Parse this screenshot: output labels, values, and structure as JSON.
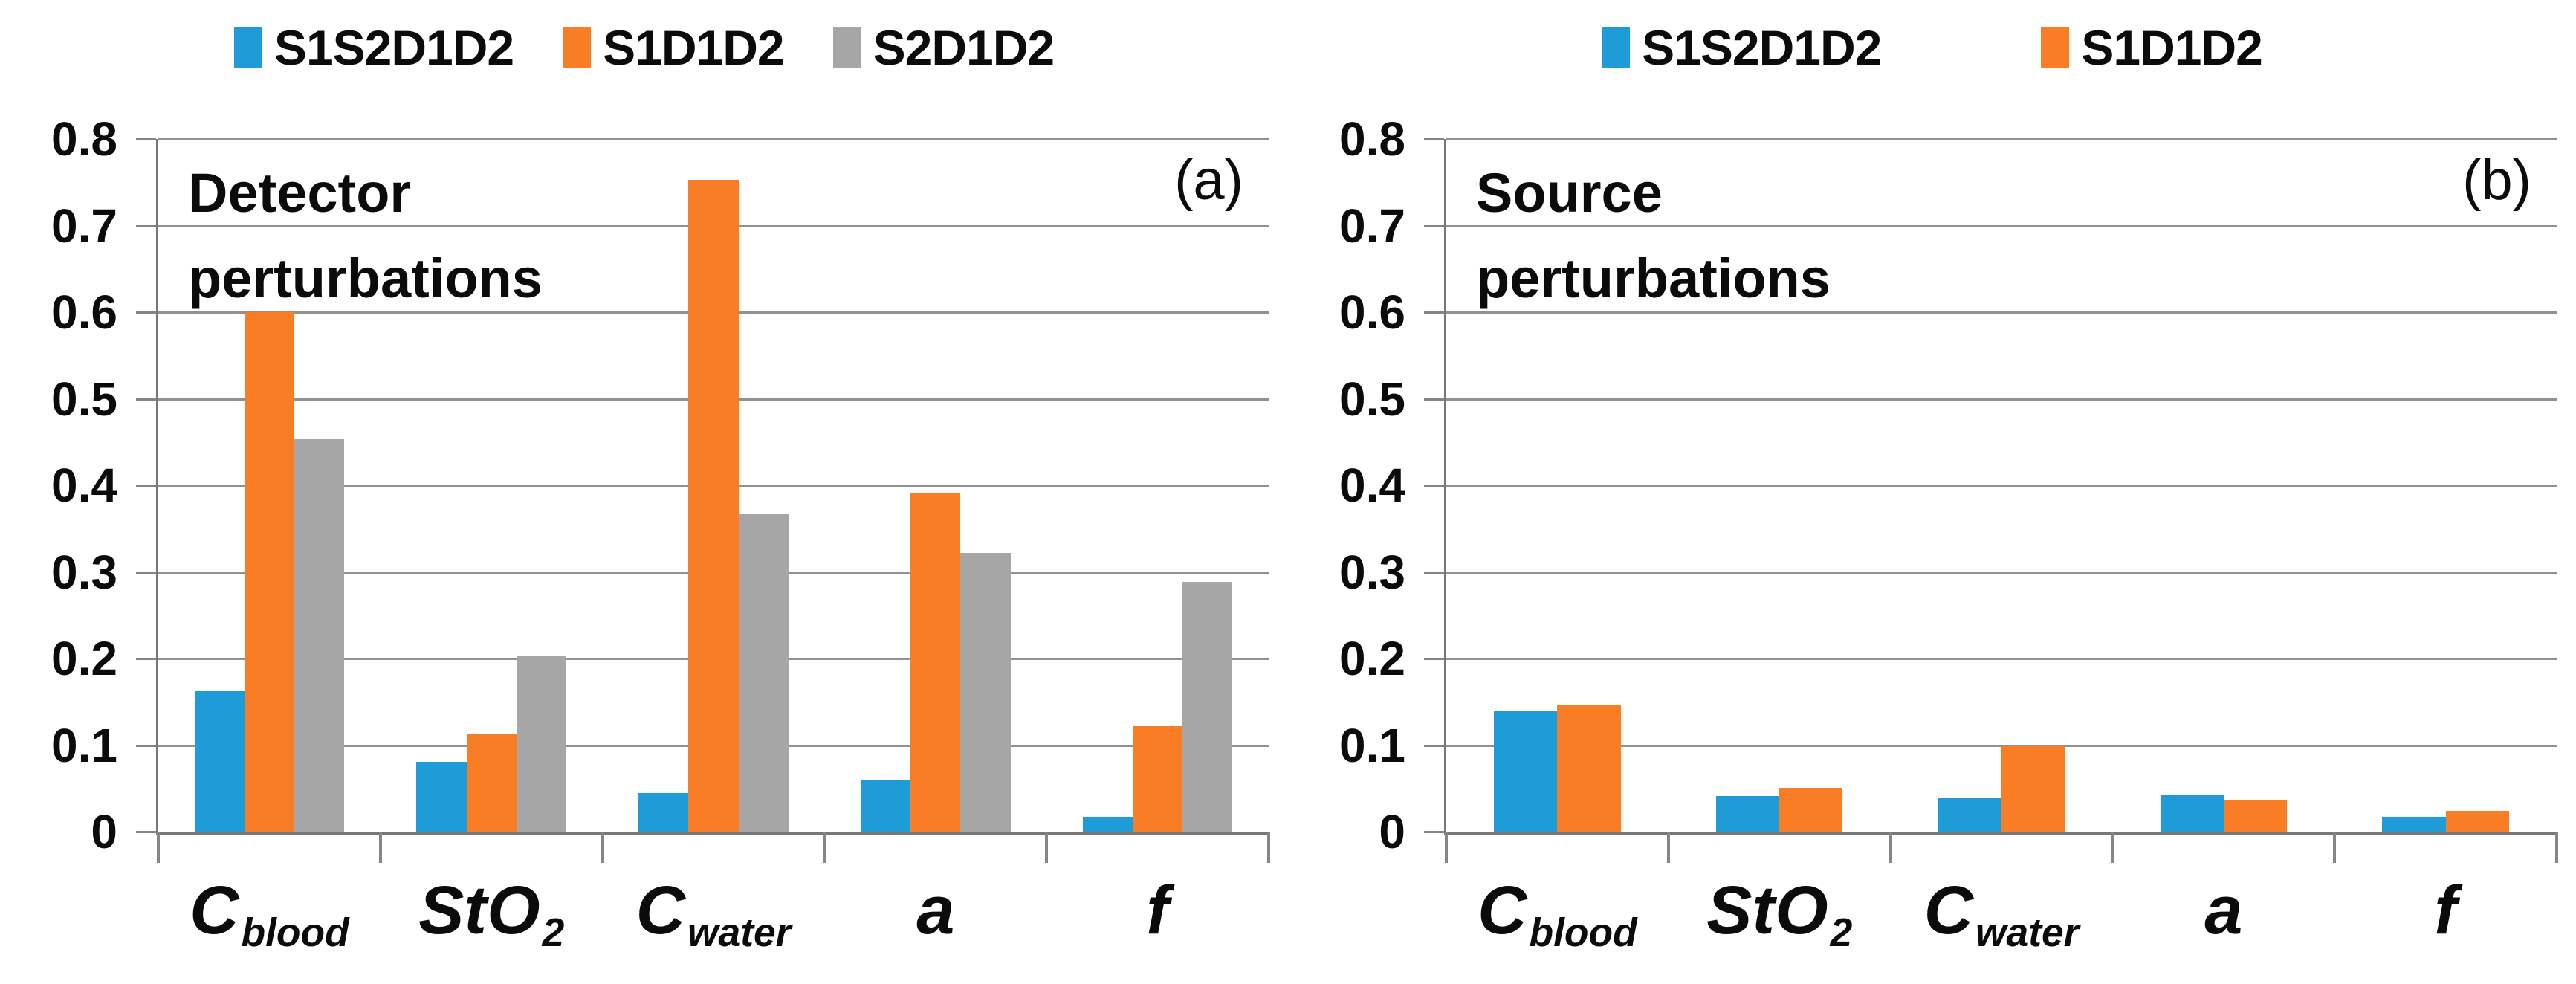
{
  "figure": {
    "background": "#ffffff",
    "grid_color": "#919191",
    "axis_color": "#777777",
    "text_color": "#0b0b0b"
  },
  "chart_data": [
    {
      "type": "bar",
      "panel_letter": "(a)",
      "title": "Detector perturbations",
      "ylim": [
        0,
        0.8
      ],
      "ytick_labels": [
        "0.8",
        "0.7",
        "0.6",
        "0.5",
        "0.4",
        "0.3",
        "0.2",
        "0.1",
        "0"
      ],
      "grid": true,
      "legend_position": "top",
      "categories": [
        {
          "main": "C",
          "sub": "blood"
        },
        {
          "main": "StO",
          "sub": "2"
        },
        {
          "main": "C",
          "sub": "water"
        },
        {
          "main": "a",
          "sub": ""
        },
        {
          "main": "f",
          "sub": ""
        }
      ],
      "series": [
        {
          "name": "S1S2D1D2",
          "color": "#1E9CD8",
          "values": [
            0.162,
            0.081,
            0.045,
            0.06,
            0.017
          ]
        },
        {
          "name": "S1D1D2",
          "color": "#F87D25",
          "values": [
            0.6,
            0.113,
            0.753,
            0.391,
            0.122
          ]
        },
        {
          "name": "S2D1D2",
          "color": "#A6A6A6",
          "values": [
            0.453,
            0.203,
            0.367,
            0.322,
            0.288
          ]
        }
      ]
    },
    {
      "type": "bar",
      "panel_letter": "(b)",
      "title": "Source perturbations",
      "ylim": [
        0,
        0.8
      ],
      "ytick_labels": [
        "0.8",
        "0.7",
        "0.6",
        "0.5",
        "0.4",
        "0.3",
        "0.2",
        "0.1",
        "0"
      ],
      "grid": true,
      "legend_position": "top",
      "categories": [
        {
          "main": "C",
          "sub": "blood"
        },
        {
          "main": "StO",
          "sub": "2"
        },
        {
          "main": "C",
          "sub": "water"
        },
        {
          "main": "a",
          "sub": ""
        },
        {
          "main": "f",
          "sub": ""
        }
      ],
      "series": [
        {
          "name": "S1S2D1D2",
          "color": "#1E9CD8",
          "values": [
            0.139,
            0.041,
            0.039,
            0.042,
            0.017
          ]
        },
        {
          "name": "S1D1D2",
          "color": "#F87D25",
          "values": [
            0.146,
            0.051,
            0.099,
            0.036,
            0.024
          ]
        }
      ]
    }
  ]
}
